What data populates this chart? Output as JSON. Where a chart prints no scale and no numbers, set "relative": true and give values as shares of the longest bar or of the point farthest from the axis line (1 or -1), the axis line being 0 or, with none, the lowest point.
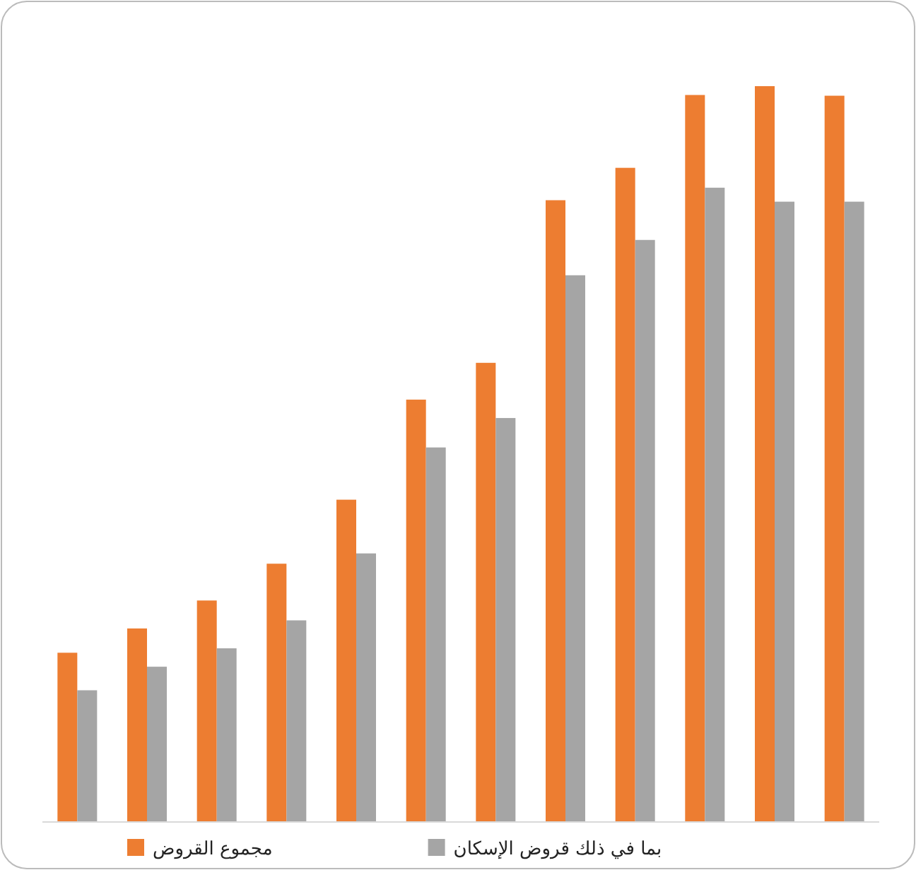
{
  "chart_data": {
    "type": "bar",
    "relative": true,
    "categories": [
      null,
      null,
      null,
      null,
      null,
      null,
      null,
      null,
      null,
      null,
      null,
      null
    ],
    "series": [
      {
        "name": "مجموع القروض",
        "color": "#ed7d31",
        "values": [
          0.23,
          0.263,
          0.301,
          0.351,
          0.438,
          0.574,
          0.624,
          0.845,
          0.889,
          0.988,
          1,
          0.987
        ]
      },
      {
        "name": "بما في ذلك قروض الإسكان",
        "color": "#a5a5a5",
        "values": [
          0.179,
          0.211,
          0.236,
          0.274,
          0.365,
          0.509,
          0.549,
          0.743,
          0.791,
          0.862,
          0.843,
          0.843
        ]
      }
    ],
    "legend": "bottom"
  }
}
